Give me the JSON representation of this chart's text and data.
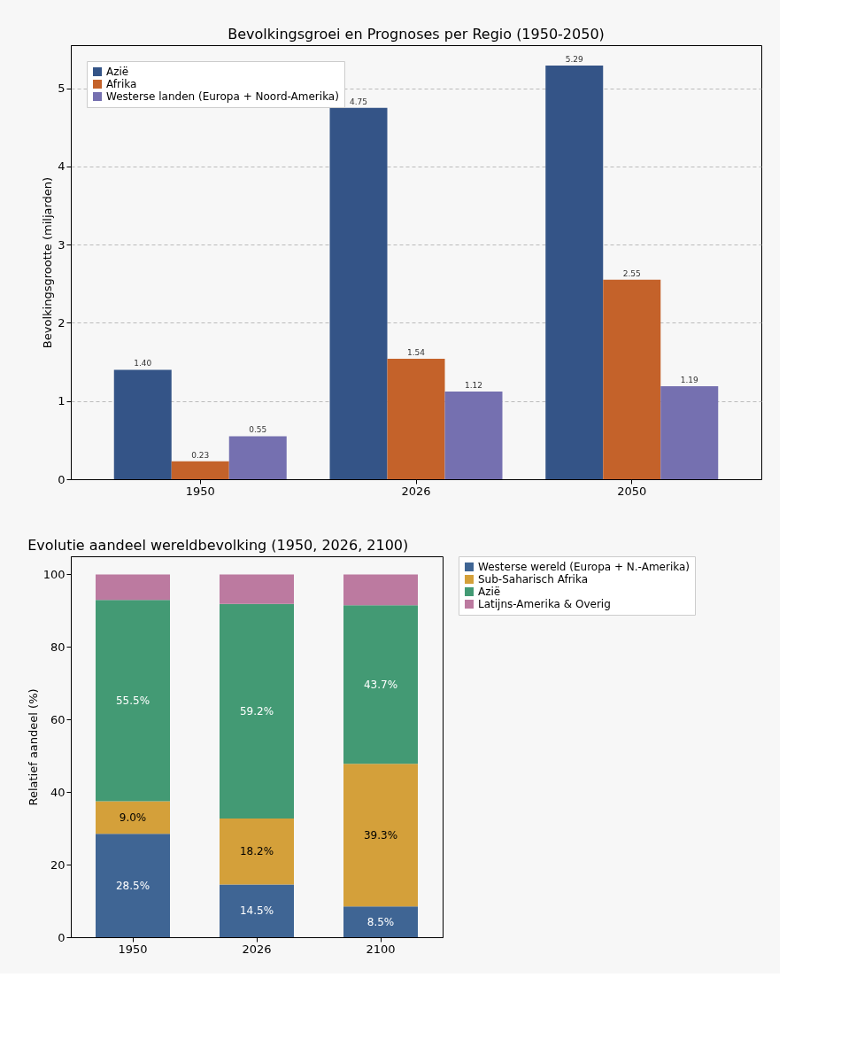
{
  "chart_data": [
    {
      "type": "bar",
      "title": "Bevolkingsgroei en Prognoses per Regio (1950-2050)",
      "ylabel": "Bevolkingsgrootte (miljarden)",
      "categories": [
        "1950",
        "2026",
        "2050"
      ],
      "ylim": [
        0,
        5.55
      ],
      "yticks": [
        0,
        1,
        2,
        3,
        4,
        5
      ],
      "grid": "y",
      "legend": "top left",
      "series": [
        {
          "name": "Azië",
          "color": "#345487",
          "values": [
            1.4,
            4.75,
            5.29
          ],
          "value_labels": [
            "1.40",
            "4.75",
            "5.29"
          ]
        },
        {
          "name": "Afrika",
          "color": "#c4622a",
          "values": [
            0.23,
            1.54,
            2.55
          ],
          "value_labels": [
            "0.23",
            "1.54",
            "2.55"
          ]
        },
        {
          "name": "Westerse landen (Europa + Noord-Amerika)",
          "color": "#7570b0",
          "values": [
            0.55,
            1.12,
            1.19
          ],
          "value_labels": [
            "0.55",
            "1.12",
            "1.19"
          ]
        }
      ]
    },
    {
      "type": "bar",
      "stacked": true,
      "title": "Evolutie aandeel wereldbevolking (1950, 2026, 2100)",
      "ylabel": "Relatief aandeel (%)",
      "categories": [
        "1950",
        "2026",
        "2100"
      ],
      "ylim": [
        0,
        105
      ],
      "yticks": [
        0,
        20,
        40,
        60,
        80,
        100
      ],
      "grid": false,
      "legend": "right",
      "series": [
        {
          "name": "Westerse wereld (Europa + N.-Amerika)",
          "color": "#3f6594",
          "values": [
            28.5,
            14.5,
            8.5
          ],
          "value_labels": [
            "28.5%",
            "14.5%",
            "8.5%"
          ]
        },
        {
          "name": "Sub-Saharisch Afrika",
          "color": "#d4a03a",
          "values": [
            9.0,
            18.2,
            39.3
          ],
          "value_labels": [
            "9.0%",
            "18.2%",
            "39.3%"
          ]
        },
        {
          "name": "Azië",
          "color": "#439a74",
          "values": [
            55.5,
            59.2,
            43.7
          ],
          "value_labels": [
            "55.5%",
            "59.2%",
            "43.7%"
          ]
        },
        {
          "name": "Latijns-Amerika & Overig",
          "color": "#bc7aa0",
          "values": [
            7.0,
            8.1,
            8.5
          ],
          "value_labels": [
            null,
            null,
            null
          ]
        }
      ]
    }
  ]
}
